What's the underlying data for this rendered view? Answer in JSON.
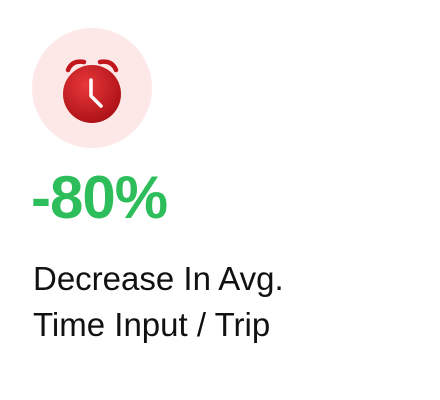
{
  "stat": {
    "icon": "alarm-clock-icon",
    "value": "-80%",
    "label_lines": [
      "Decrease In Avg.",
      "Time Input / Trip"
    ]
  },
  "colors": {
    "value": "#2dbd5a",
    "icon_background": "#fde8e8",
    "icon_primary": "#c0161c",
    "label_text": "#111111"
  }
}
